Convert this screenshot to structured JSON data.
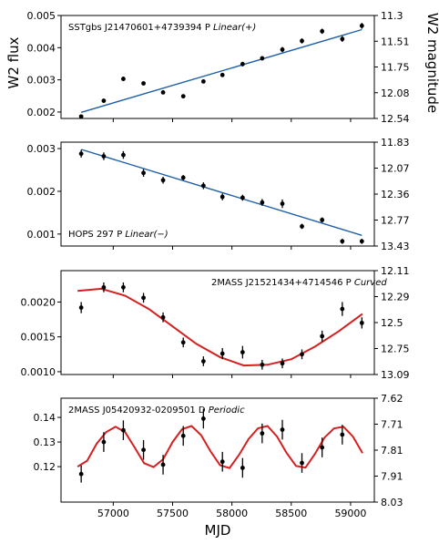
{
  "chart_data": [
    {
      "type": "scatter",
      "label": {
        "prefix": "SSTgbs J21470601+4739394 P ",
        "model": "Linear(+)"
      },
      "xlim": [
        56560,
        59200
      ],
      "ylim": [
        0.0018,
        0.005
      ],
      "left_ticks": [
        {
          "v": 0.002,
          "t": "0.002"
        },
        {
          "v": 0.003,
          "t": "0.003"
        },
        {
          "v": 0.004,
          "t": "0.004"
        },
        {
          "v": 0.005,
          "t": "0.005"
        }
      ],
      "right_ticks": [
        "11.3",
        "11.51",
        "11.75",
        "12.08",
        "12.54"
      ],
      "points": [
        {
          "x": 56730,
          "y": 0.00186,
          "err": 6e-05
        },
        {
          "x": 56920,
          "y": 0.00235,
          "err": 6e-05
        },
        {
          "x": 57085,
          "y": 0.00303,
          "err": 7e-05
        },
        {
          "x": 57255,
          "y": 0.00289,
          "err": 6e-05
        },
        {
          "x": 57420,
          "y": 0.00261,
          "err": 6e-05
        },
        {
          "x": 57590,
          "y": 0.00249,
          "err": 6e-05
        },
        {
          "x": 57760,
          "y": 0.00295,
          "err": 6e-05
        },
        {
          "x": 57920,
          "y": 0.00315,
          "err": 6e-05
        },
        {
          "x": 58090,
          "y": 0.00349,
          "err": 7e-05
        },
        {
          "x": 58255,
          "y": 0.00367,
          "err": 7e-05
        },
        {
          "x": 58425,
          "y": 0.00394,
          "err": 8e-05
        },
        {
          "x": 58590,
          "y": 0.00421,
          "err": 8e-05
        },
        {
          "x": 58760,
          "y": 0.00451,
          "err": 8e-05
        },
        {
          "x": 58930,
          "y": 0.00427,
          "err": 9e-05
        },
        {
          "x": 59095,
          "y": 0.00468,
          "err": 9e-05
        }
      ],
      "fit": {
        "kind": "line",
        "color": "#1f5fa8",
        "x": [
          56730,
          59095
        ],
        "y": [
          0.00199,
          0.00456
        ]
      }
    },
    {
      "type": "scatter",
      "label": {
        "prefix": "HOPS 297 P ",
        "model": "Linear(−)"
      },
      "xlim": [
        56560,
        59200
      ],
      "ylim": [
        0.00072,
        0.00315
      ],
      "left_ticks": [
        {
          "v": 0.001,
          "t": "0.001"
        },
        {
          "v": 0.002,
          "t": "0.002"
        },
        {
          "v": 0.003,
          "t": "0.003"
        }
      ],
      "right_ticks": [
        "11.83",
        "12.07",
        "12.36",
        "12.77",
        "13.43"
      ],
      "points": [
        {
          "x": 56730,
          "y": 0.00288,
          "err": 9e-05
        },
        {
          "x": 56920,
          "y": 0.00282,
          "err": 9e-05
        },
        {
          "x": 57085,
          "y": 0.00285,
          "err": 9e-05
        },
        {
          "x": 57255,
          "y": 0.00243,
          "err": 9e-05
        },
        {
          "x": 57420,
          "y": 0.00226,
          "err": 8e-05
        },
        {
          "x": 57590,
          "y": 0.00232,
          "err": 6e-05
        },
        {
          "x": 57760,
          "y": 0.00213,
          "err": 8e-05
        },
        {
          "x": 57920,
          "y": 0.00187,
          "err": 8e-05
        },
        {
          "x": 58090,
          "y": 0.00185,
          "err": 7e-05
        },
        {
          "x": 58255,
          "y": 0.00174,
          "err": 8e-05
        },
        {
          "x": 58425,
          "y": 0.00171,
          "err": 0.0001
        },
        {
          "x": 58590,
          "y": 0.00118,
          "err": 6e-05
        },
        {
          "x": 58760,
          "y": 0.00133,
          "err": 6e-05
        },
        {
          "x": 58930,
          "y": 0.00083,
          "err": 6e-05
        },
        {
          "x": 59095,
          "y": 0.00083,
          "err": 6e-05
        }
      ],
      "fit": {
        "kind": "line",
        "color": "#1f5fa8",
        "x": [
          56730,
          59095
        ],
        "y": [
          0.00298,
          0.00097
        ]
      }
    },
    {
      "type": "scatter",
      "label": {
        "prefix": "2MASS J21521434+4714546 P ",
        "model": "Curved"
      },
      "xlim": [
        56560,
        59200
      ],
      "ylim": [
        0.00096,
        0.00245
      ],
      "left_ticks": [
        {
          "v": 0.001,
          "t": "0.0010"
        },
        {
          "v": 0.0015,
          "t": "0.0015"
        },
        {
          "v": 0.002,
          "t": "0.0020"
        }
      ],
      "right_ticks": [
        "12.11",
        "12.29",
        "12.5",
        "12.75",
        "13.09"
      ],
      "points": [
        {
          "x": 56730,
          "y": 0.00192,
          "err": 8e-05
        },
        {
          "x": 56920,
          "y": 0.00221,
          "err": 7e-05
        },
        {
          "x": 57085,
          "y": 0.00221,
          "err": 7e-05
        },
        {
          "x": 57255,
          "y": 0.00206,
          "err": 7e-05
        },
        {
          "x": 57420,
          "y": 0.00178,
          "err": 7e-05
        },
        {
          "x": 57590,
          "y": 0.00142,
          "err": 7e-05
        },
        {
          "x": 57760,
          "y": 0.00115,
          "err": 7e-05
        },
        {
          "x": 57920,
          "y": 0.00126,
          "err": 8e-05
        },
        {
          "x": 58090,
          "y": 0.00128,
          "err": 9e-05
        },
        {
          "x": 58255,
          "y": 0.0011,
          "err": 7e-05
        },
        {
          "x": 58425,
          "y": 0.00112,
          "err": 7e-05
        },
        {
          "x": 58590,
          "y": 0.00125,
          "err": 7e-05
        },
        {
          "x": 58760,
          "y": 0.00151,
          "err": 8e-05
        },
        {
          "x": 58930,
          "y": 0.0019,
          "err": 0.0001
        },
        {
          "x": 59095,
          "y": 0.0017,
          "err": 8e-05
        }
      ],
      "fit": {
        "kind": "curve",
        "color": "#d42020",
        "x": [
          56700,
          56900,
          57100,
          57300,
          57500,
          57700,
          57900,
          58100,
          58300,
          58500,
          58700,
          58900,
          59100
        ],
        "y": [
          0.00216,
          0.00219,
          0.00209,
          0.0019,
          0.00165,
          0.0014,
          0.00121,
          0.00109,
          0.0011,
          0.00118,
          0.00136,
          0.00158,
          0.00183
        ]
      }
    },
    {
      "type": "scatter",
      "label": {
        "prefix": "2MASS J05420932-0209501 D ",
        "model": "Periodic"
      },
      "xlim": [
        56560,
        59200
      ],
      "ylim": [
        0.1056,
        0.1478
      ],
      "left_ticks": [
        {
          "v": 0.12,
          "t": "0.12"
        },
        {
          "v": 0.13,
          "t": "0.13"
        },
        {
          "v": 0.14,
          "t": "0.14"
        }
      ],
      "right_ticks": [
        "7.62",
        "7.71",
        "7.81",
        "7.91",
        "8.03"
      ],
      "points": [
        {
          "x": 56730,
          "y": 0.117,
          "err": 0.0035
        },
        {
          "x": 56920,
          "y": 0.13,
          "err": 0.004
        },
        {
          "x": 57085,
          "y": 0.1348,
          "err": 0.004
        },
        {
          "x": 57255,
          "y": 0.1268,
          "err": 0.004
        },
        {
          "x": 57420,
          "y": 0.1208,
          "err": 0.004
        },
        {
          "x": 57590,
          "y": 0.1325,
          "err": 0.004
        },
        {
          "x": 57760,
          "y": 0.1395,
          "err": 0.004
        },
        {
          "x": 57920,
          "y": 0.122,
          "err": 0.004
        },
        {
          "x": 58090,
          "y": 0.1195,
          "err": 0.004
        },
        {
          "x": 58255,
          "y": 0.1335,
          "err": 0.004
        },
        {
          "x": 58425,
          "y": 0.135,
          "err": 0.004
        },
        {
          "x": 58590,
          "y": 0.1215,
          "err": 0.004
        },
        {
          "x": 58760,
          "y": 0.1278,
          "err": 0.004
        },
        {
          "x": 58930,
          "y": 0.133,
          "err": 0.004
        }
      ],
      "fit": {
        "kind": "curve",
        "color": "#d42020",
        "x": [
          56700,
          56780,
          56860,
          56940,
          57020,
          57100,
          57180,
          57260,
          57340,
          57420,
          57500,
          57580,
          57660,
          57740,
          57820,
          57900,
          57980,
          58060,
          58140,
          58220,
          58300,
          58380,
          58460,
          58540,
          58620,
          58700,
          58780,
          58860,
          58940,
          59020,
          59100
        ],
        "y": [
          0.12,
          0.1224,
          0.1293,
          0.134,
          0.1362,
          0.134,
          0.1278,
          0.1214,
          0.1198,
          0.123,
          0.13,
          0.1352,
          0.1365,
          0.1328,
          0.1262,
          0.1206,
          0.1194,
          0.1248,
          0.1312,
          0.1356,
          0.1365,
          0.1322,
          0.1256,
          0.1203,
          0.1196,
          0.1252,
          0.1318,
          0.1355,
          0.1362,
          0.1322,
          0.1255
        ]
      }
    }
  ],
  "x_ticks": [
    57000,
    57500,
    58000,
    58500,
    59000
  ],
  "xlabel": "MJD",
  "ylabel_left": "W2 flux",
  "ylabel_right": "W2 magnitude"
}
